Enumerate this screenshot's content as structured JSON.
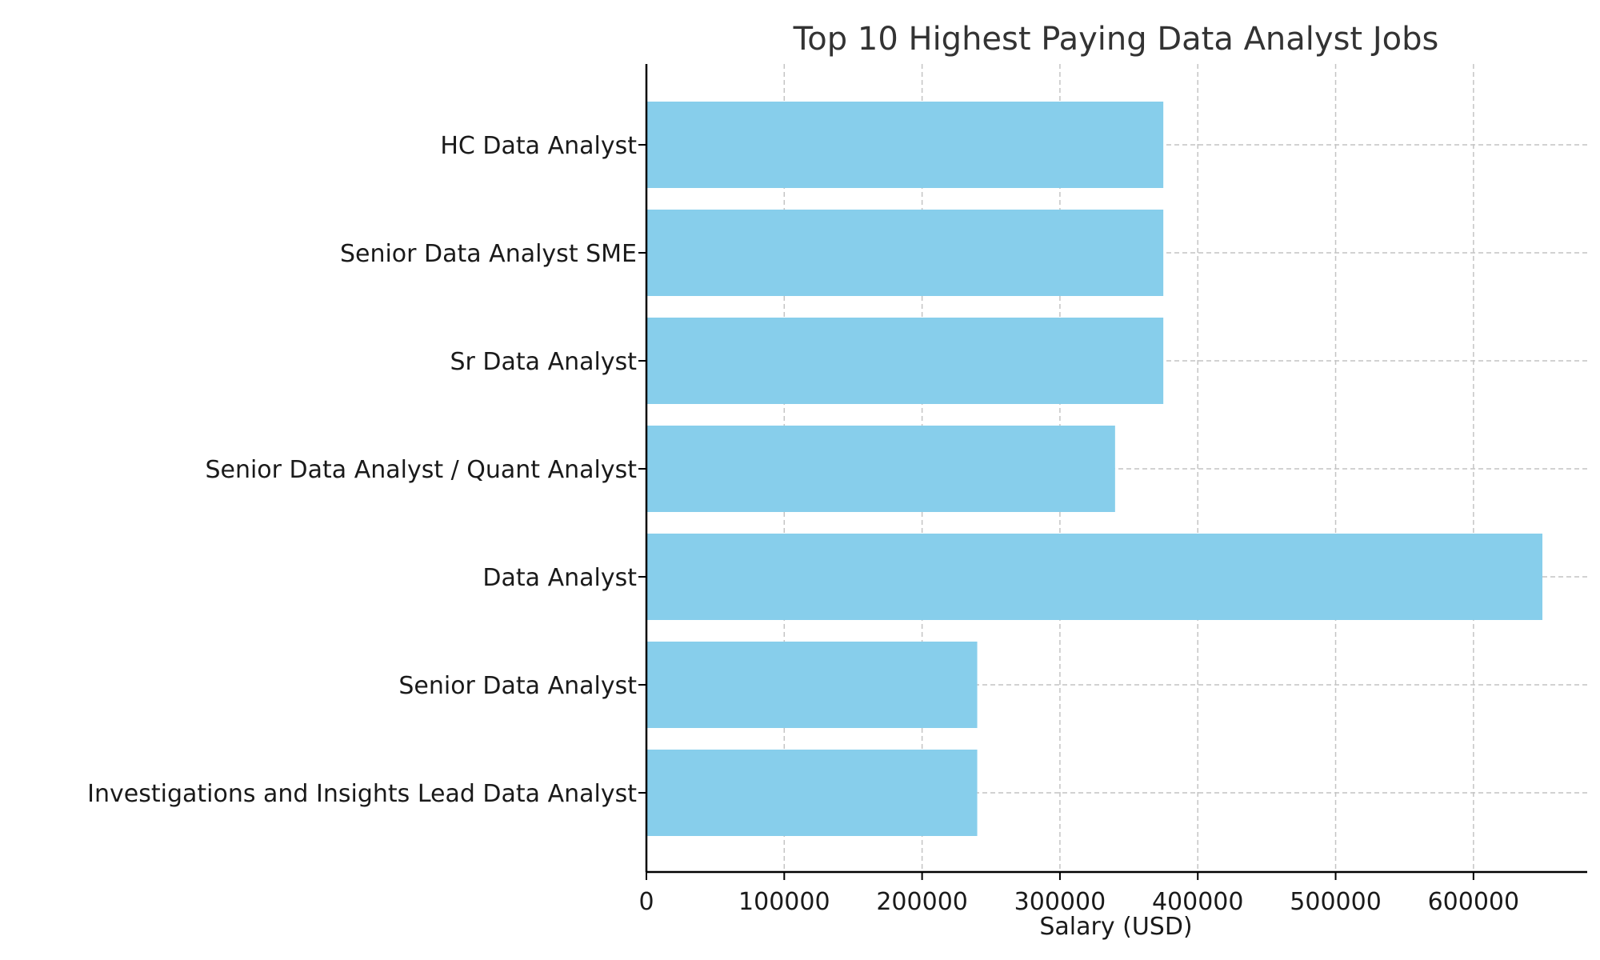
{
  "chart_data": {
    "type": "bar",
    "orientation": "horizontal",
    "title": "Top 10 Highest Paying Data Analyst Jobs",
    "xlabel": "Salary (USD)",
    "ylabel": "",
    "categories": [
      "HC Data Analyst",
      "Senior Data Analyst SME",
      "Sr Data Analyst",
      "Senior Data Analyst / Quant Analyst",
      "Data Analyst",
      "Senior Data Analyst",
      "Investigations and Insights Lead Data Analyst"
    ],
    "values": [
      375000,
      375000,
      375000,
      340000,
      650000,
      240000,
      240000
    ],
    "xlim": [
      0,
      682500
    ],
    "xticks": [
      0,
      100000,
      200000,
      300000,
      400000,
      500000,
      600000
    ],
    "xtick_labels": [
      "0",
      "100000",
      "200000",
      "300000",
      "400000",
      "500000",
      "600000"
    ],
    "grid": true,
    "bar_color": "#87ceeb"
  }
}
